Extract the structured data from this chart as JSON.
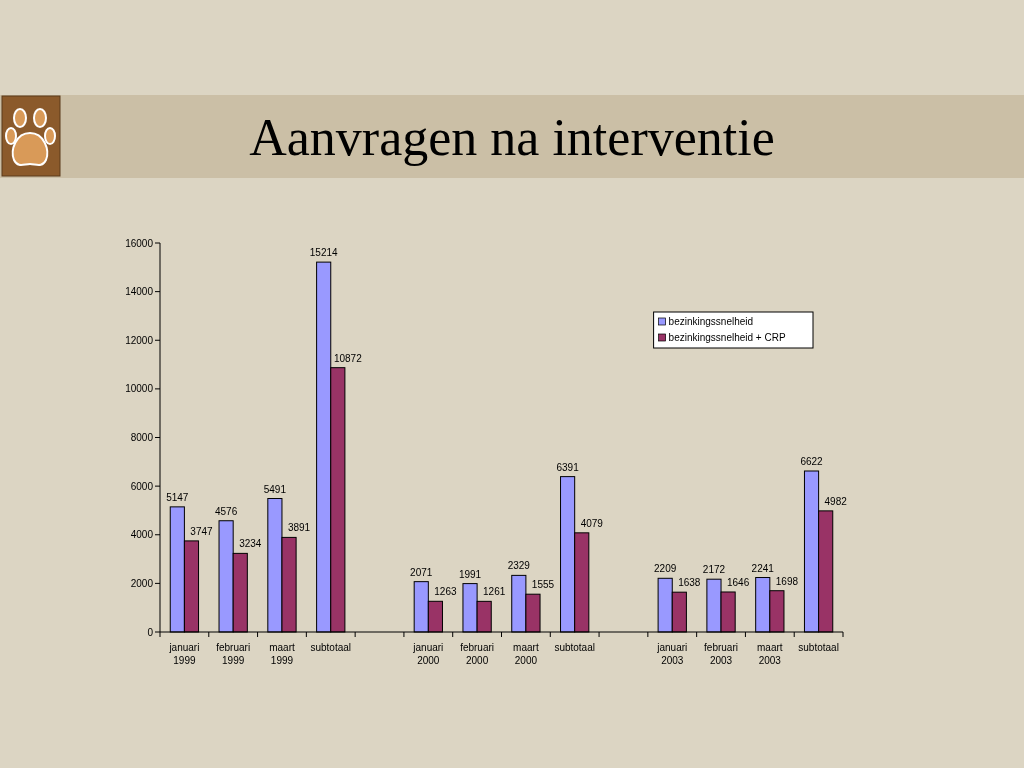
{
  "chart_data": {
    "type": "bar",
    "title": "Aanvragen na interventie",
    "categories": [
      "januari 1999",
      "februari 1999",
      "maart 1999",
      "subtotaal",
      null,
      "januari 2000",
      "februari 2000",
      "maart 2000",
      "subtotaal",
      null,
      "januari 2003",
      "februari 2003",
      "maart 2003",
      "subtotaal"
    ],
    "series": [
      {
        "name": "bezinkingssnelheid",
        "color": "#9999ff",
        "values": [
          5147,
          4576,
          5491,
          15214,
          null,
          2071,
          1991,
          2329,
          6391,
          null,
          2209,
          2172,
          2241,
          6622
        ]
      },
      {
        "name": "bezinkingssnelheid + CRP",
        "color": "#993366",
        "values": [
          3747,
          3234,
          3891,
          10872,
          null,
          1263,
          1261,
          1555,
          4079,
          null,
          1638,
          1646,
          1698,
          4982
        ]
      }
    ],
    "ylim": [
      0,
      16000
    ],
    "yticks": [
      0,
      2000,
      4000,
      6000,
      8000,
      10000,
      12000,
      14000,
      16000
    ],
    "data_labels": true,
    "legend": "top right"
  }
}
